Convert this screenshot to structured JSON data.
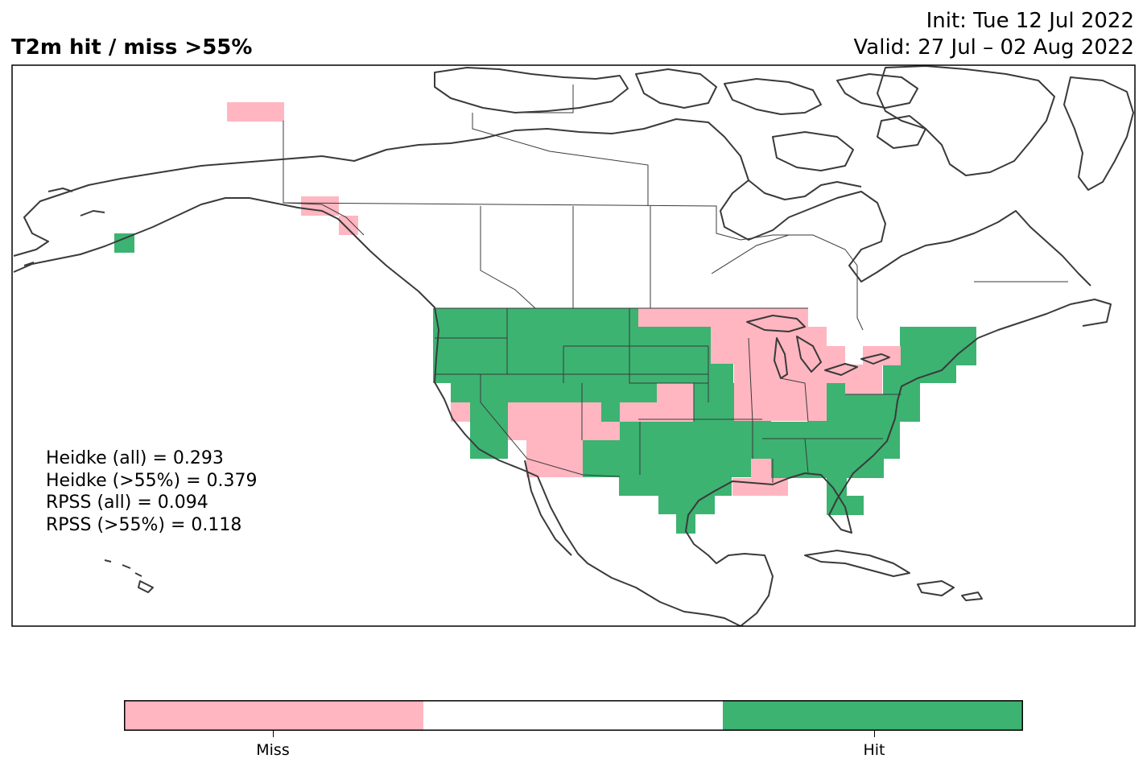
{
  "header": {
    "title": "T2m hit / miss  >55%",
    "init": "Init: Tue 12 Jul 2022",
    "valid": "Valid: 27 Jul – 02 Aug 2022"
  },
  "stats": {
    "heidke_all": "Heidke (all) = 0.293",
    "heidke_55": "Heidke (>55%) = 0.379",
    "rpss_all": "RPSS (all) = 0.094",
    "rpss_55": "RPSS (>55%) = 0.118"
  },
  "legend": {
    "miss_label": "Miss",
    "hit_label": "Hit",
    "miss_color": "#ffb6c1",
    "hit_color": "#3cb371",
    "neutral_color": "#ffffff"
  },
  "map": {
    "region": "North America",
    "coastline_color": "#3a3a3a",
    "categories": [
      "miss",
      "hit"
    ]
  }
}
